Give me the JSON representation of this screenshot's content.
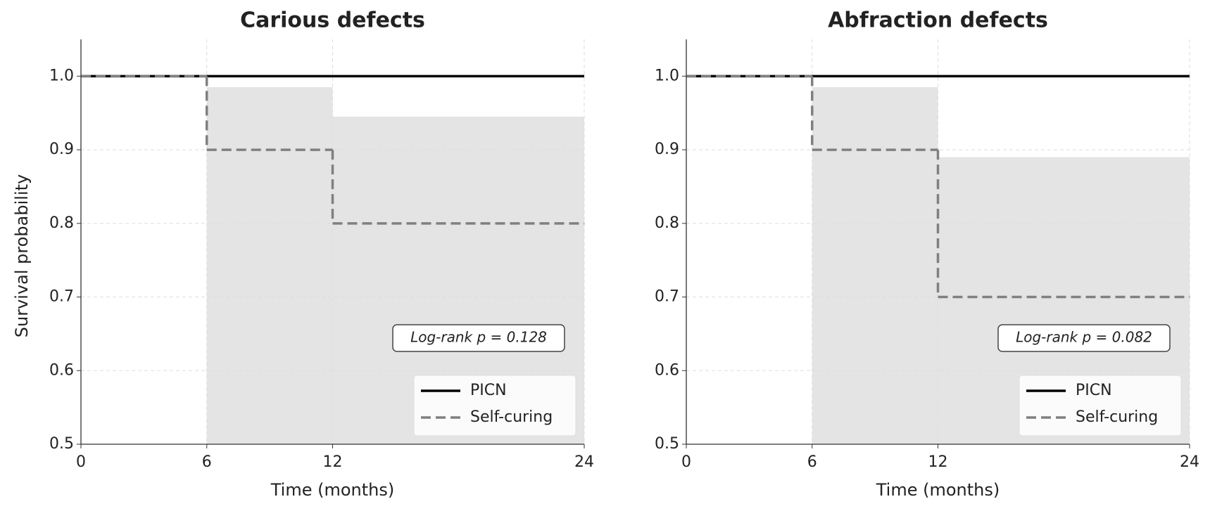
{
  "chart_data": [
    {
      "type": "step",
      "title": "Carious defects",
      "xlabel": "Time (months)",
      "ylabel": "Survival probability",
      "x": [
        0,
        6,
        12,
        24
      ],
      "series": [
        {
          "name": "PICN",
          "color": "#000000",
          "style": "solid",
          "values": [
            1.0,
            1.0,
            1.0,
            1.0
          ]
        },
        {
          "name": "Self-curing",
          "color": "#808080",
          "style": "dashed",
          "values": [
            1.0,
            0.9,
            0.8,
            0.8
          ]
        }
      ],
      "ci_upper": [
        1.0,
        0.985,
        0.945,
        0.945
      ],
      "ci_lower": [
        1.0,
        0.5,
        0.5,
        0.5
      ],
      "ci_color": "#e4e4e4",
      "annotation": "Log-rank p = 0.128",
      "xlim": [
        0,
        24
      ],
      "xticks": [
        0,
        6,
        12,
        24
      ],
      "ylim": [
        0.5,
        1.05
      ],
      "yticks": [
        {
          "value": 0.5,
          "label": "0.5"
        },
        {
          "value": 0.6,
          "label": "0.6"
        },
        {
          "value": 0.7,
          "label": "0.7"
        },
        {
          "value": 0.8,
          "label": "0.8"
        },
        {
          "value": 0.9,
          "label": "0.9"
        },
        {
          "value": 1.0,
          "label": "1.0"
        }
      ],
      "grid": true,
      "legend": "lower right"
    },
    {
      "type": "step",
      "title": "Abfraction defects",
      "xlabel": "Time (months)",
      "x": [
        0,
        6,
        12,
        24
      ],
      "series": [
        {
          "name": "PICN",
          "color": "#000000",
          "style": "solid",
          "values": [
            1.0,
            1.0,
            1.0,
            1.0
          ]
        },
        {
          "name": "Self-curing",
          "color": "#808080",
          "style": "dashed",
          "values": [
            1.0,
            0.9,
            0.7,
            0.7
          ]
        }
      ],
      "ci_upper": [
        1.0,
        0.985,
        0.89,
        0.89
      ],
      "ci_lower": [
        1.0,
        0.5,
        0.5,
        0.5
      ],
      "ci_color": "#e4e4e4",
      "annotation": "Log-rank p = 0.082",
      "xlim": [
        0,
        24
      ],
      "xticks": [
        0,
        6,
        12,
        24
      ],
      "ylim": [
        0.5,
        1.05
      ],
      "yticks": [
        {
          "value": 0.5,
          "label": "0.5"
        },
        {
          "value": 0.6,
          "label": "0.6"
        },
        {
          "value": 0.7,
          "label": "0.7"
        },
        {
          "value": 0.8,
          "label": "0.8"
        },
        {
          "value": 0.9,
          "label": "0.9"
        },
        {
          "value": 1.0,
          "label": "1.0"
        }
      ],
      "grid": true,
      "legend": "lower right"
    }
  ]
}
